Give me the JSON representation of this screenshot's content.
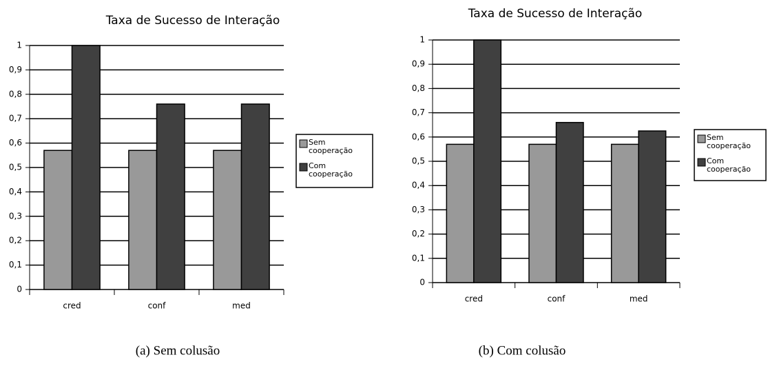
{
  "chart_data": [
    {
      "type": "bar",
      "title": "Taxa de Sucesso de Interação",
      "caption": "(a)  Sem colusão",
      "categories": [
        "cred",
        "conf",
        "med"
      ],
      "series": [
        {
          "name": "Sem cooperação",
          "color": "#999999",
          "values": [
            0.57,
            0.57,
            0.57
          ]
        },
        {
          "name": "Com cooperação",
          "color": "#404040",
          "values": [
            1.0,
            0.76,
            0.76
          ]
        }
      ],
      "ylim": [
        0,
        1
      ],
      "yticks": [
        0,
        {
          "value": 0.1,
          "label": "0,1"
        },
        {
          "value": 0.2,
          "label": "0,2"
        },
        {
          "value": 0.3,
          "label": "0,3"
        },
        {
          "value": 0.4,
          "label": "0,4"
        },
        {
          "value": 0.5,
          "label": "0,5"
        },
        {
          "value": 0.6,
          "label": "0,6"
        },
        {
          "value": 0.7,
          "label": "0,7"
        },
        {
          "value": 0.8,
          "label": "0,8"
        },
        {
          "value": 0.9,
          "label": "0,9"
        },
        1
      ],
      "grid": true,
      "legend": "right"
    },
    {
      "type": "bar",
      "title": "Taxa de Sucesso de Interação",
      "caption": "(b)  Com colusão",
      "categories": [
        "cred",
        "conf",
        "med"
      ],
      "series": [
        {
          "name": "Sem cooperação",
          "color": "#999999",
          "values": [
            0.57,
            0.57,
            0.57
          ]
        },
        {
          "name": "Com cooperação",
          "color": "#404040",
          "values": [
            1.0,
            0.66,
            0.625
          ]
        }
      ],
      "ylim": [
        0,
        1
      ],
      "yticks": [
        0,
        {
          "value": 0.1,
          "label": "0,1"
        },
        {
          "value": 0.2,
          "label": "0,2"
        },
        {
          "value": 0.3,
          "label": "0,3"
        },
        {
          "value": 0.4,
          "label": "0,4"
        },
        {
          "value": 0.5,
          "label": "0,5"
        },
        {
          "value": 0.6,
          "label": "0,6"
        },
        {
          "value": 0.7,
          "label": "0,7"
        },
        {
          "value": 0.8,
          "label": "0,8"
        },
        {
          "value": 0.9,
          "label": "0,9"
        },
        1
      ],
      "grid": true,
      "legend": "right"
    }
  ]
}
